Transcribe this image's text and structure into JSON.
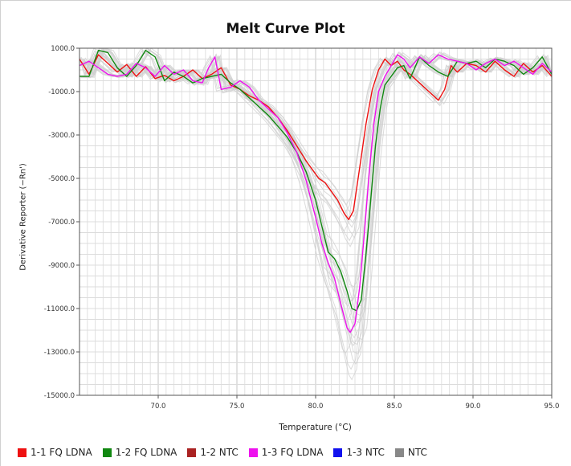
{
  "chart_data": {
    "type": "line",
    "title": "Melt Curve Plot",
    "xlabel": "Temperature (°C)",
    "ylabel": "Derivative Reporter (−Rn')",
    "xlim": [
      65.0,
      95.0
    ],
    "ylim": [
      -15000.0,
      1000.0
    ],
    "x_ticks": [
      "70.0",
      "75.0",
      "80.0",
      "85.0",
      "90.0",
      "95.0"
    ],
    "y_ticks": [
      "1000.0",
      "-1000.0",
      "-3000.0",
      "-5000.0",
      "-7000.0",
      "-9000.0",
      "-11000.0",
      "-13000.0",
      "-15000.0"
    ],
    "grid": true,
    "legend_position": "bottom",
    "series": [
      {
        "name": "1-1 FQ LDNA",
        "color": "#ee1111",
        "x": [
          65.0,
          65.6,
          66.2,
          66.8,
          67.4,
          68.0,
          68.6,
          69.2,
          69.8,
          70.4,
          71.0,
          71.6,
          72.2,
          72.8,
          73.4,
          74.0,
          74.6,
          75.2,
          75.8,
          76.4,
          77.0,
          77.6,
          78.2,
          78.8,
          79.4,
          79.8,
          80.2,
          80.6,
          81.0,
          81.4,
          81.8,
          82.1,
          82.4,
          82.8,
          83.2,
          83.6,
          84.0,
          84.4,
          84.8,
          85.2,
          85.6,
          86.0,
          86.6,
          87.2,
          87.8,
          88.2,
          88.6,
          89.0,
          89.6,
          90.2,
          90.8,
          91.4,
          92.0,
          92.6,
          93.2,
          93.8,
          94.4,
          95.0
        ],
        "values": [
          500,
          -200,
          700,
          300,
          -100,
          250,
          -300,
          150,
          -400,
          -250,
          -500,
          -300,
          0,
          -400,
          -200,
          100,
          -700,
          -900,
          -1200,
          -1400,
          -1700,
          -2200,
          -2800,
          -3500,
          -4200,
          -4600,
          -5000,
          -5200,
          -5600,
          -6000,
          -6600,
          -6900,
          -6500,
          -4500,
          -2500,
          -900,
          0,
          500,
          200,
          400,
          0,
          -200,
          -600,
          -1000,
          -1400,
          -900,
          200,
          -100,
          300,
          200,
          -100,
          400,
          0,
          -300,
          300,
          -100,
          200,
          -300
        ]
      },
      {
        "name": "1-2 FQ LDNA",
        "color": "#118811",
        "x": [
          65.0,
          65.6,
          66.2,
          66.8,
          67.4,
          68.0,
          68.6,
          69.2,
          69.8,
          70.4,
          71.0,
          71.6,
          72.2,
          72.8,
          73.4,
          74.0,
          74.6,
          75.2,
          75.8,
          76.4,
          77.0,
          77.6,
          78.2,
          78.8,
          79.4,
          80.0,
          80.4,
          80.8,
          81.2,
          81.6,
          82.0,
          82.3,
          82.6,
          82.9,
          83.2,
          83.5,
          83.8,
          84.1,
          84.4,
          84.8,
          85.2,
          85.6,
          86.0,
          86.6,
          87.2,
          87.8,
          88.4,
          89.0,
          89.6,
          90.2,
          90.8,
          91.4,
          92.0,
          92.6,
          93.2,
          93.8,
          94.4,
          95.0
        ],
        "values": [
          -300,
          -300,
          900,
          800,
          100,
          -300,
          200,
          900,
          600,
          -500,
          -100,
          -300,
          -600,
          -400,
          -300,
          -200,
          -600,
          -900,
          -1300,
          -1700,
          -2100,
          -2600,
          -3100,
          -3800,
          -4700,
          -6000,
          -7200,
          -8400,
          -8700,
          -9300,
          -10200,
          -11000,
          -11100,
          -10600,
          -8500,
          -6000,
          -3500,
          -1800,
          -700,
          -300,
          100,
          200,
          -400,
          600,
          200,
          -100,
          -300,
          400,
          300,
          400,
          100,
          500,
          400,
          200,
          -200,
          100,
          600,
          -200
        ]
      },
      {
        "name": "1-2 NTC",
        "color": "#aa2222",
        "x": [],
        "values": []
      },
      {
        "name": "1-3 FQ LDNA",
        "color": "#ee11ee",
        "x": [
          65.0,
          65.6,
          66.2,
          66.8,
          67.4,
          68.0,
          68.6,
          69.2,
          69.8,
          70.4,
          71.0,
          71.6,
          72.2,
          72.8,
          73.2,
          73.6,
          74.0,
          74.6,
          75.2,
          75.8,
          76.4,
          77.0,
          77.6,
          78.2,
          78.8,
          79.4,
          80.0,
          80.4,
          80.8,
          81.2,
          81.6,
          82.0,
          82.2,
          82.5,
          82.8,
          83.1,
          83.4,
          83.7,
          84.0,
          84.4,
          84.8,
          85.2,
          85.6,
          86.0,
          86.6,
          87.2,
          87.8,
          88.4,
          89.0,
          89.6,
          90.2,
          90.8,
          91.4,
          92.0,
          92.6,
          93.2,
          93.8,
          94.4,
          95.0
        ],
        "values": [
          200,
          400,
          100,
          -200,
          -300,
          -200,
          300,
          100,
          -300,
          200,
          -200,
          0,
          -500,
          -600,
          100,
          600,
          -900,
          -800,
          -500,
          -800,
          -1400,
          -1800,
          -2200,
          -2900,
          -3800,
          -5100,
          -6800,
          -8000,
          -8900,
          -9600,
          -10800,
          -11900,
          -12100,
          -11700,
          -10000,
          -7500,
          -4800,
          -2500,
          -1000,
          -300,
          200,
          700,
          500,
          100,
          600,
          300,
          700,
          500,
          400,
          300,
          0,
          300,
          500,
          200,
          400,
          100,
          -200,
          300,
          -100
        ]
      },
      {
        "name": "1-3 NTC",
        "color": "#1111ee",
        "x": [],
        "values": []
      },
      {
        "name": "NTC",
        "color": "#888888",
        "x": [],
        "values": []
      }
    ]
  }
}
